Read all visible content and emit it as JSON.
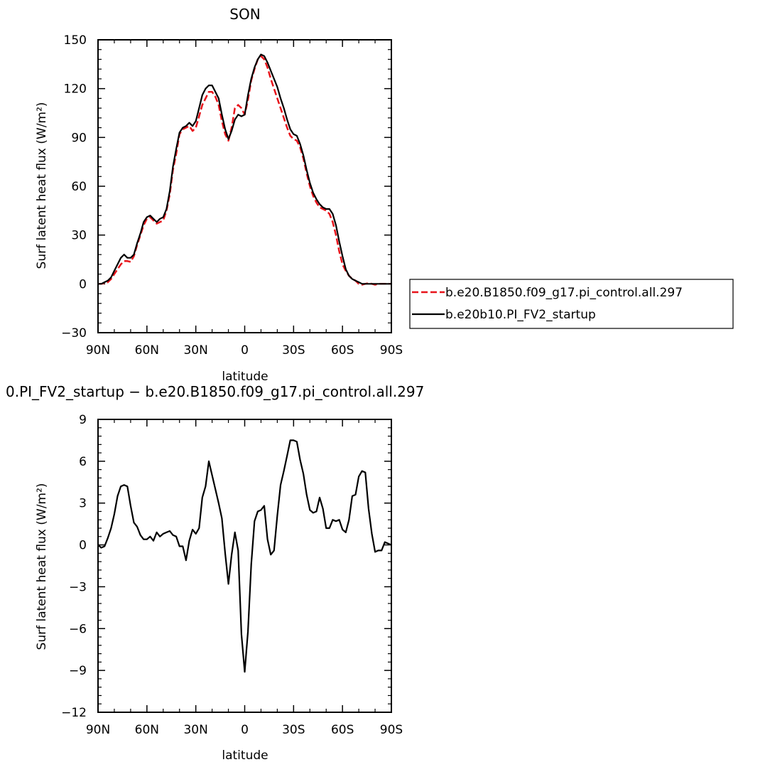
{
  "chart_data": [
    {
      "type": "line",
      "title": "SON",
      "xlabel": "latitude",
      "ylabel": "Surf latent heat flux (W/m²)",
      "xlim": [
        90,
        -90
      ],
      "ylim": [
        -30,
        150
      ],
      "xticks": [
        90,
        60,
        30,
        0,
        -30,
        -60,
        -90
      ],
      "xtick_labels": [
        "90N",
        "60N",
        "30N",
        "0",
        "30S",
        "60S",
        "90S"
      ],
      "yticks": [
        -30,
        0,
        30,
        60,
        90,
        120,
        150
      ],
      "ytick_labels": [
        "−30",
        "0",
        "30",
        "60",
        "90",
        "120",
        "150"
      ],
      "legend_position": "right",
      "series": [
        {
          "name": "b.e20.B1850.f09_g17.pi_control.all.297",
          "color": "#e8141b",
          "dash": true,
          "x": [
            90,
            88,
            86,
            84,
            82,
            80,
            78,
            76,
            74,
            72,
            70,
            68,
            66,
            64,
            62,
            60,
            58,
            56,
            54,
            52,
            50,
            48,
            46,
            44,
            42,
            40,
            38,
            36,
            34,
            32,
            30,
            28,
            26,
            24,
            22,
            20,
            18,
            16,
            14,
            12,
            10,
            8,
            6,
            4,
            2,
            0,
            -2,
            -4,
            -6,
            -8,
            -10,
            -12,
            -14,
            -16,
            -18,
            -20,
            -22,
            -24,
            -26,
            -28,
            -30,
            -32,
            -34,
            -36,
            -38,
            -40,
            -42,
            -44,
            -46,
            -48,
            -50,
            -52,
            -54,
            -56,
            -58,
            -60,
            -62,
            -64,
            -66,
            -68,
            -70,
            -72,
            -74,
            -76,
            -78,
            -80,
            -82,
            -84,
            -86,
            -88,
            -90
          ],
          "y": [
            0,
            0,
            0.5,
            1,
            3,
            6,
            9,
            12,
            14,
            14,
            13.5,
            17,
            24,
            30,
            36,
            40,
            41,
            39,
            37,
            38,
            39,
            45,
            55,
            70,
            80,
            92,
            95,
            96,
            97,
            94,
            96,
            103,
            110,
            114,
            118,
            118,
            115,
            110,
            100,
            92,
            88,
            96,
            108,
            110,
            108,
            104,
            113,
            125,
            132,
            138,
            140,
            138,
            133,
            126,
            120,
            114,
            108,
            102,
            96,
            91,
            89,
            88,
            84,
            77,
            68,
            60,
            54,
            50,
            47,
            46,
            45,
            43,
            38,
            30,
            20,
            12,
            8,
            5,
            3,
            2,
            0,
            -0.5,
            0,
            0.5,
            0,
            -0.5,
            0,
            0,
            0,
            0,
            0
          ]
        },
        {
          "name": "b.e20b10.PI_FV2_startup",
          "color": "#000000",
          "dash": false,
          "x": [
            90,
            88,
            86,
            84,
            82,
            80,
            78,
            76,
            74,
            72,
            70,
            68,
            66,
            64,
            62,
            60,
            58,
            56,
            54,
            52,
            50,
            48,
            46,
            44,
            42,
            40,
            38,
            36,
            34,
            32,
            30,
            28,
            26,
            24,
            22,
            20,
            18,
            16,
            14,
            12,
            10,
            8,
            6,
            4,
            2,
            0,
            -2,
            -4,
            -6,
            -8,
            -10,
            -12,
            -14,
            -16,
            -18,
            -20,
            -22,
            -24,
            -26,
            -28,
            -30,
            -32,
            -34,
            -36,
            -38,
            -40,
            -42,
            -44,
            -46,
            -48,
            -50,
            -52,
            -54,
            -56,
            -58,
            -60,
            -62,
            -64,
            -66,
            -68,
            -70,
            -72,
            -74,
            -76,
            -78,
            -80,
            -82,
            -84,
            -86,
            -88,
            -90
          ],
          "y": [
            0,
            0,
            1,
            2,
            4,
            8,
            12,
            16,
            18,
            16,
            16,
            18,
            25,
            31,
            38,
            41,
            42,
            40,
            38,
            40,
            41,
            46,
            57,
            72,
            83,
            93,
            96,
            97,
            99,
            97,
            100,
            108,
            116,
            120,
            122,
            122,
            118,
            114,
            104,
            95,
            89,
            94,
            101,
            104,
            103,
            104,
            116,
            126,
            133,
            138,
            141,
            140,
            136,
            131,
            126,
            121,
            114,
            108,
            101,
            95,
            92,
            91,
            86,
            79,
            70,
            62,
            56,
            52,
            49,
            47,
            46,
            46,
            43,
            36,
            26,
            17,
            9,
            5,
            3,
            2,
            1,
            0,
            0,
            0,
            0,
            0,
            0,
            0,
            0,
            0,
            0
          ]
        }
      ]
    },
    {
      "type": "line",
      "title": "0.PI_FV2_startup − b.e20.B1850.f09_g17.pi_control.all.297",
      "xlabel": "latitude",
      "ylabel": "Surf latent heat flux (W/m²)",
      "xlim": [
        90,
        -90
      ],
      "ylim": [
        -12,
        9
      ],
      "xticks": [
        90,
        60,
        30,
        0,
        -30,
        -60,
        -90
      ],
      "xtick_labels": [
        "90N",
        "60N",
        "30N",
        "0",
        "30S",
        "60S",
        "90S"
      ],
      "yticks": [
        -12,
        -9,
        -6,
        -3,
        0,
        3,
        6,
        9
      ],
      "ytick_labels": [
        "−12",
        "−9",
        "−6",
        "−3",
        "0",
        "3",
        "6",
        "9"
      ],
      "series": [
        {
          "color": "#000000",
          "dash": false,
          "x": [
            90,
            88,
            86,
            84,
            82,
            80,
            78,
            76,
            74,
            72,
            70,
            68,
            66,
            64,
            62,
            60,
            58,
            56,
            54,
            52,
            50,
            48,
            46,
            44,
            42,
            40,
            38,
            36,
            34,
            32,
            30,
            28,
            26,
            24,
            22,
            20,
            18,
            16,
            14,
            12,
            10,
            8,
            6,
            4,
            2,
            0,
            -2,
            -4,
            -6,
            -8,
            -10,
            -12,
            -14,
            -16,
            -18,
            -20,
            -22,
            -24,
            -26,
            -28,
            -30,
            -32,
            -34,
            -36,
            -38,
            -40,
            -42,
            -44,
            -46,
            -48,
            -50,
            -52,
            -54,
            -56,
            -58,
            -60,
            -62,
            -64,
            -66,
            -68,
            -70,
            -72,
            -74,
            -76,
            -78,
            -80,
            -82,
            -84,
            -86,
            -88,
            -90
          ],
          "y": [
            0,
            -0.2,
            -0.1,
            0.5,
            1.2,
            2.2,
            3.5,
            4.2,
            4.3,
            4.2,
            2.8,
            1.6,
            1.3,
            0.7,
            0.4,
            0.4,
            0.6,
            0.3,
            0.9,
            0.6,
            0.8,
            0.9,
            1.0,
            0.7,
            0.6,
            -0.1,
            -0.1,
            -1.1,
            0.3,
            1.1,
            0.8,
            1.2,
            3.4,
            4.2,
            6.0,
            5.0,
            4.0,
            3.0,
            1.9,
            -0.6,
            -2.8,
            -0.7,
            0.9,
            -0.4,
            -6.4,
            -9.1,
            -6.2,
            -1.4,
            1.7,
            2.4,
            2.5,
            2.8,
            0.4,
            -0.7,
            -0.4,
            2.1,
            4.3,
            5.3,
            6.4,
            7.5,
            7.5,
            7.4,
            6.1,
            5.1,
            3.6,
            2.5,
            2.3,
            2.4,
            3.4,
            2.6,
            1.2,
            1.2,
            1.8,
            1.7,
            1.8,
            1.1,
            0.9,
            1.8,
            3.5,
            3.6,
            4.9,
            5.3,
            5.2,
            2.6,
            0.8,
            -0.5,
            -0.4,
            -0.4,
            0.2,
            0.1,
            0
          ]
        }
      ]
    }
  ]
}
